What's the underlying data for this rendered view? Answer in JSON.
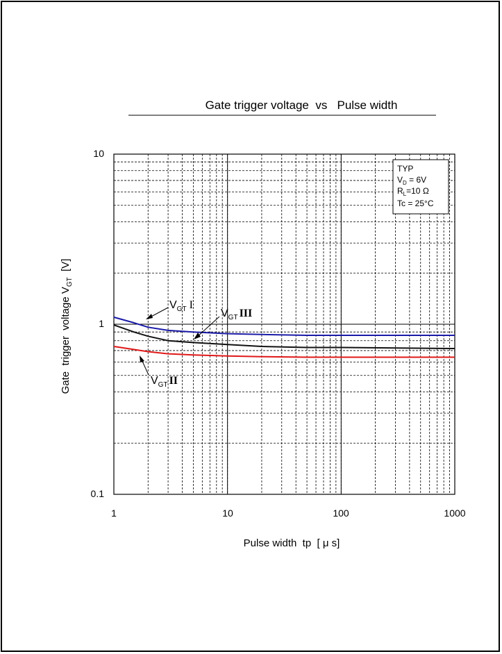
{
  "chart_data": {
    "type": "line",
    "title": "Gate trigger voltage  vs   Pulse width",
    "xlabel": "Pulse width  tp  [ μ s]",
    "ylabel_main": "Gate  trigger  voltage V",
    "ylabel_sub": "GT",
    "ylabel_unit": "  [V]",
    "xscale": "log",
    "yscale": "log",
    "xlim": [
      1,
      1000
    ],
    "ylim": [
      0.1,
      10
    ],
    "x_tick_labels": [
      "1",
      "10",
      "100",
      "1000"
    ],
    "y_tick_labels": [
      "0.1",
      "1",
      "10"
    ],
    "grid": true,
    "legend": {
      "placement": "top-right",
      "lines": [
        {
          "main": "TYP",
          "sub": "",
          "rest": ""
        },
        {
          "main": "V",
          "sub": "D",
          "rest": " = 6V"
        },
        {
          "main": "R",
          "sub": "L",
          "rest": "=10 Ω"
        },
        {
          "main": "Tc = 25°C",
          "sub": "",
          "rest": ""
        }
      ]
    },
    "series": [
      {
        "label_main": "V",
        "label_sub": "GT",
        "label_roman": "I",
        "color": "#1a1aa8",
        "x": [
          1,
          1.5,
          2,
          3,
          5,
          10,
          20,
          50,
          100,
          1000
        ],
        "y": [
          1.1,
          1.02,
          0.96,
          0.92,
          0.9,
          0.88,
          0.87,
          0.86,
          0.86,
          0.86
        ]
      },
      {
        "label_main": "V",
        "label_sub": "GT",
        "label_roman": "III",
        "color": "#111111",
        "x": [
          1,
          1.5,
          2,
          3,
          5,
          10,
          20,
          50,
          100,
          1000
        ],
        "y": [
          0.99,
          0.9,
          0.85,
          0.8,
          0.78,
          0.76,
          0.74,
          0.73,
          0.73,
          0.72
        ]
      },
      {
        "label_main": "V",
        "label_sub": "GT",
        "label_roman": "II",
        "color": "#e01818",
        "x": [
          1,
          1.5,
          2,
          3,
          5,
          10,
          20,
          50,
          100,
          1000
        ],
        "y": [
          0.74,
          0.71,
          0.69,
          0.67,
          0.66,
          0.65,
          0.645,
          0.64,
          0.64,
          0.64
        ]
      }
    ]
  }
}
